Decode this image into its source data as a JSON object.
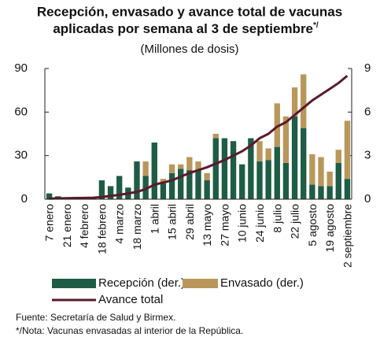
{
  "chart_data": {
    "type": "bar_line",
    "title": [
      "Recepción, envasado y avance total de vacunas",
      "aplicadas por semana al 3 de septiembre"
    ],
    "title_note": "*/",
    "subtitle": "(Millones de dosis)",
    "categories": [
      "7 enero",
      null,
      "21 enero",
      null,
      "4 febrero",
      null,
      "18 febrero",
      null,
      "4 marzo",
      null,
      "18 marzo",
      null,
      "1 abril",
      null,
      "15 abril",
      null,
      "29 abril",
      null,
      "13 mayo",
      null,
      "27 mayo",
      null,
      "10 junio",
      null,
      "24 junio",
      null,
      "8 julio",
      null,
      "22 julio",
      null,
      "5 agosto",
      null,
      "19 agosto",
      null,
      "2 septiembre"
    ],
    "series": [
      {
        "name": "Recepción (der.)",
        "color": "#1e5c45",
        "kind": "bar",
        "axis": "y2",
        "values": [
          0.4,
          0.2,
          0.1,
          0.1,
          0.1,
          0.1,
          1.3,
          0.9,
          1.6,
          0.8,
          2.6,
          1.6,
          3.9,
          1.1,
          1.8,
          2.1,
          2.0,
          2.0,
          1.3,
          4.2,
          4.2,
          4.0,
          2.4,
          4.2,
          2.6,
          2.7,
          3.6,
          2.5,
          5.7,
          4.9,
          1.0,
          0.9,
          0.9,
          2.5,
          1.4
        ]
      },
      {
        "name": "Envasado (der.)",
        "color": "#b9975b",
        "kind": "bar",
        "axis": "y2",
        "values": [
          0,
          0,
          0,
          0,
          0,
          0,
          0,
          0,
          0,
          0,
          0,
          1.0,
          0,
          0.3,
          0.6,
          0.3,
          0.9,
          0.6,
          0.5,
          0.3,
          0,
          0,
          0,
          0,
          1.4,
          0.8,
          3.0,
          3.2,
          2.0,
          3.7,
          2.1,
          2.0,
          1.0,
          0.9,
          4.0
        ]
      },
      {
        "name": "Avance total",
        "color": "#5b1a2b",
        "kind": "line",
        "axis": "y",
        "values": [
          0.4,
          0.6,
          0.7,
          0.8,
          0.9,
          1.0,
          1.5,
          2.3,
          3.0,
          4.0,
          5.0,
          7.0,
          10.0,
          11.5,
          13.0,
          15.5,
          18.0,
          20.0,
          22.0,
          24.5,
          27.0,
          30.0,
          33.0,
          37.0,
          42.0,
          45.0,
          50.0,
          53.0,
          58.0,
          63.0,
          68.0,
          72.0,
          76.0,
          80.0,
          85.0
        ]
      }
    ],
    "ylim": [
      0,
      90
    ],
    "yticks": [
      0,
      30,
      60,
      90
    ],
    "y2lim": [
      0,
      9
    ],
    "y2ticks": [
      0,
      3,
      6,
      9
    ],
    "notes": [
      "Fuente: Secretaría de Salud y Birmex.",
      "*/Nota: Vacunas envasadas al interior de la República."
    ]
  }
}
